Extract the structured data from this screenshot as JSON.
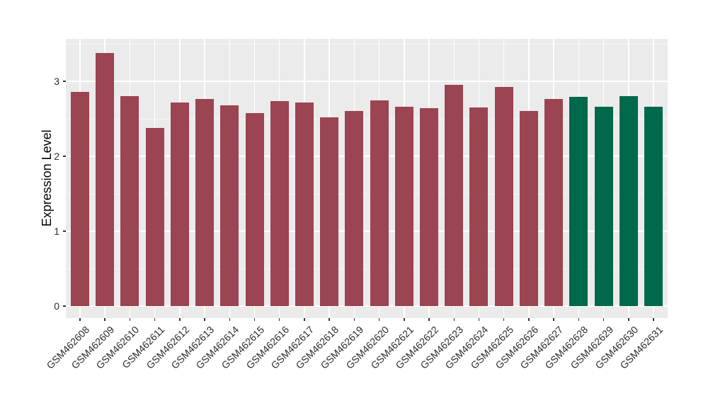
{
  "chart_data": {
    "type": "bar",
    "title": "",
    "xlabel": "",
    "ylabel": "Expression Level",
    "categories": [
      "GSM462608",
      "GSM462609",
      "GSM462610",
      "GSM462611",
      "GSM462612",
      "GSM462613",
      "GSM462614",
      "GSM462615",
      "GSM462616",
      "GSM462617",
      "GSM462618",
      "GSM462619",
      "GSM462620",
      "GSM462621",
      "GSM462622",
      "GSM462623",
      "GSM462624",
      "GSM462625",
      "GSM462626",
      "GSM462627",
      "GSM462628",
      "GSM462629",
      "GSM462630",
      "GSM462631"
    ],
    "values": [
      2.86,
      3.38,
      2.8,
      2.38,
      2.72,
      2.76,
      2.68,
      2.58,
      2.74,
      2.72,
      2.52,
      2.6,
      2.75,
      2.66,
      2.64,
      2.95,
      2.65,
      2.92,
      2.6,
      2.76,
      2.79,
      2.66,
      2.8,
      2.66
    ],
    "bar_groups": [
      "maroon",
      "maroon",
      "maroon",
      "maroon",
      "maroon",
      "maroon",
      "maroon",
      "maroon",
      "maroon",
      "maroon",
      "maroon",
      "maroon",
      "maroon",
      "maroon",
      "maroon",
      "maroon",
      "maroon",
      "maroon",
      "maroon",
      "maroon",
      "green",
      "green",
      "green",
      "green"
    ],
    "colors": {
      "maroon": "#9B4452",
      "green": "#00694B"
    },
    "yticks": [
      0,
      1,
      2,
      3
    ],
    "yticks_minor": [
      0.5,
      1.5,
      2.5,
      3.5
    ],
    "ylim": [
      0,
      3.57
    ],
    "grid": "on",
    "legend": "none"
  },
  "theme": {
    "panel_bg": "#EBEBEB",
    "grid_major": "#FFFFFF",
    "grid_minor": "#F5F5F5",
    "tick_mark": "#333333",
    "tick_text": "#2B2B2B",
    "axis_title": "#000000",
    "page_bg": "#FFFFFF"
  }
}
